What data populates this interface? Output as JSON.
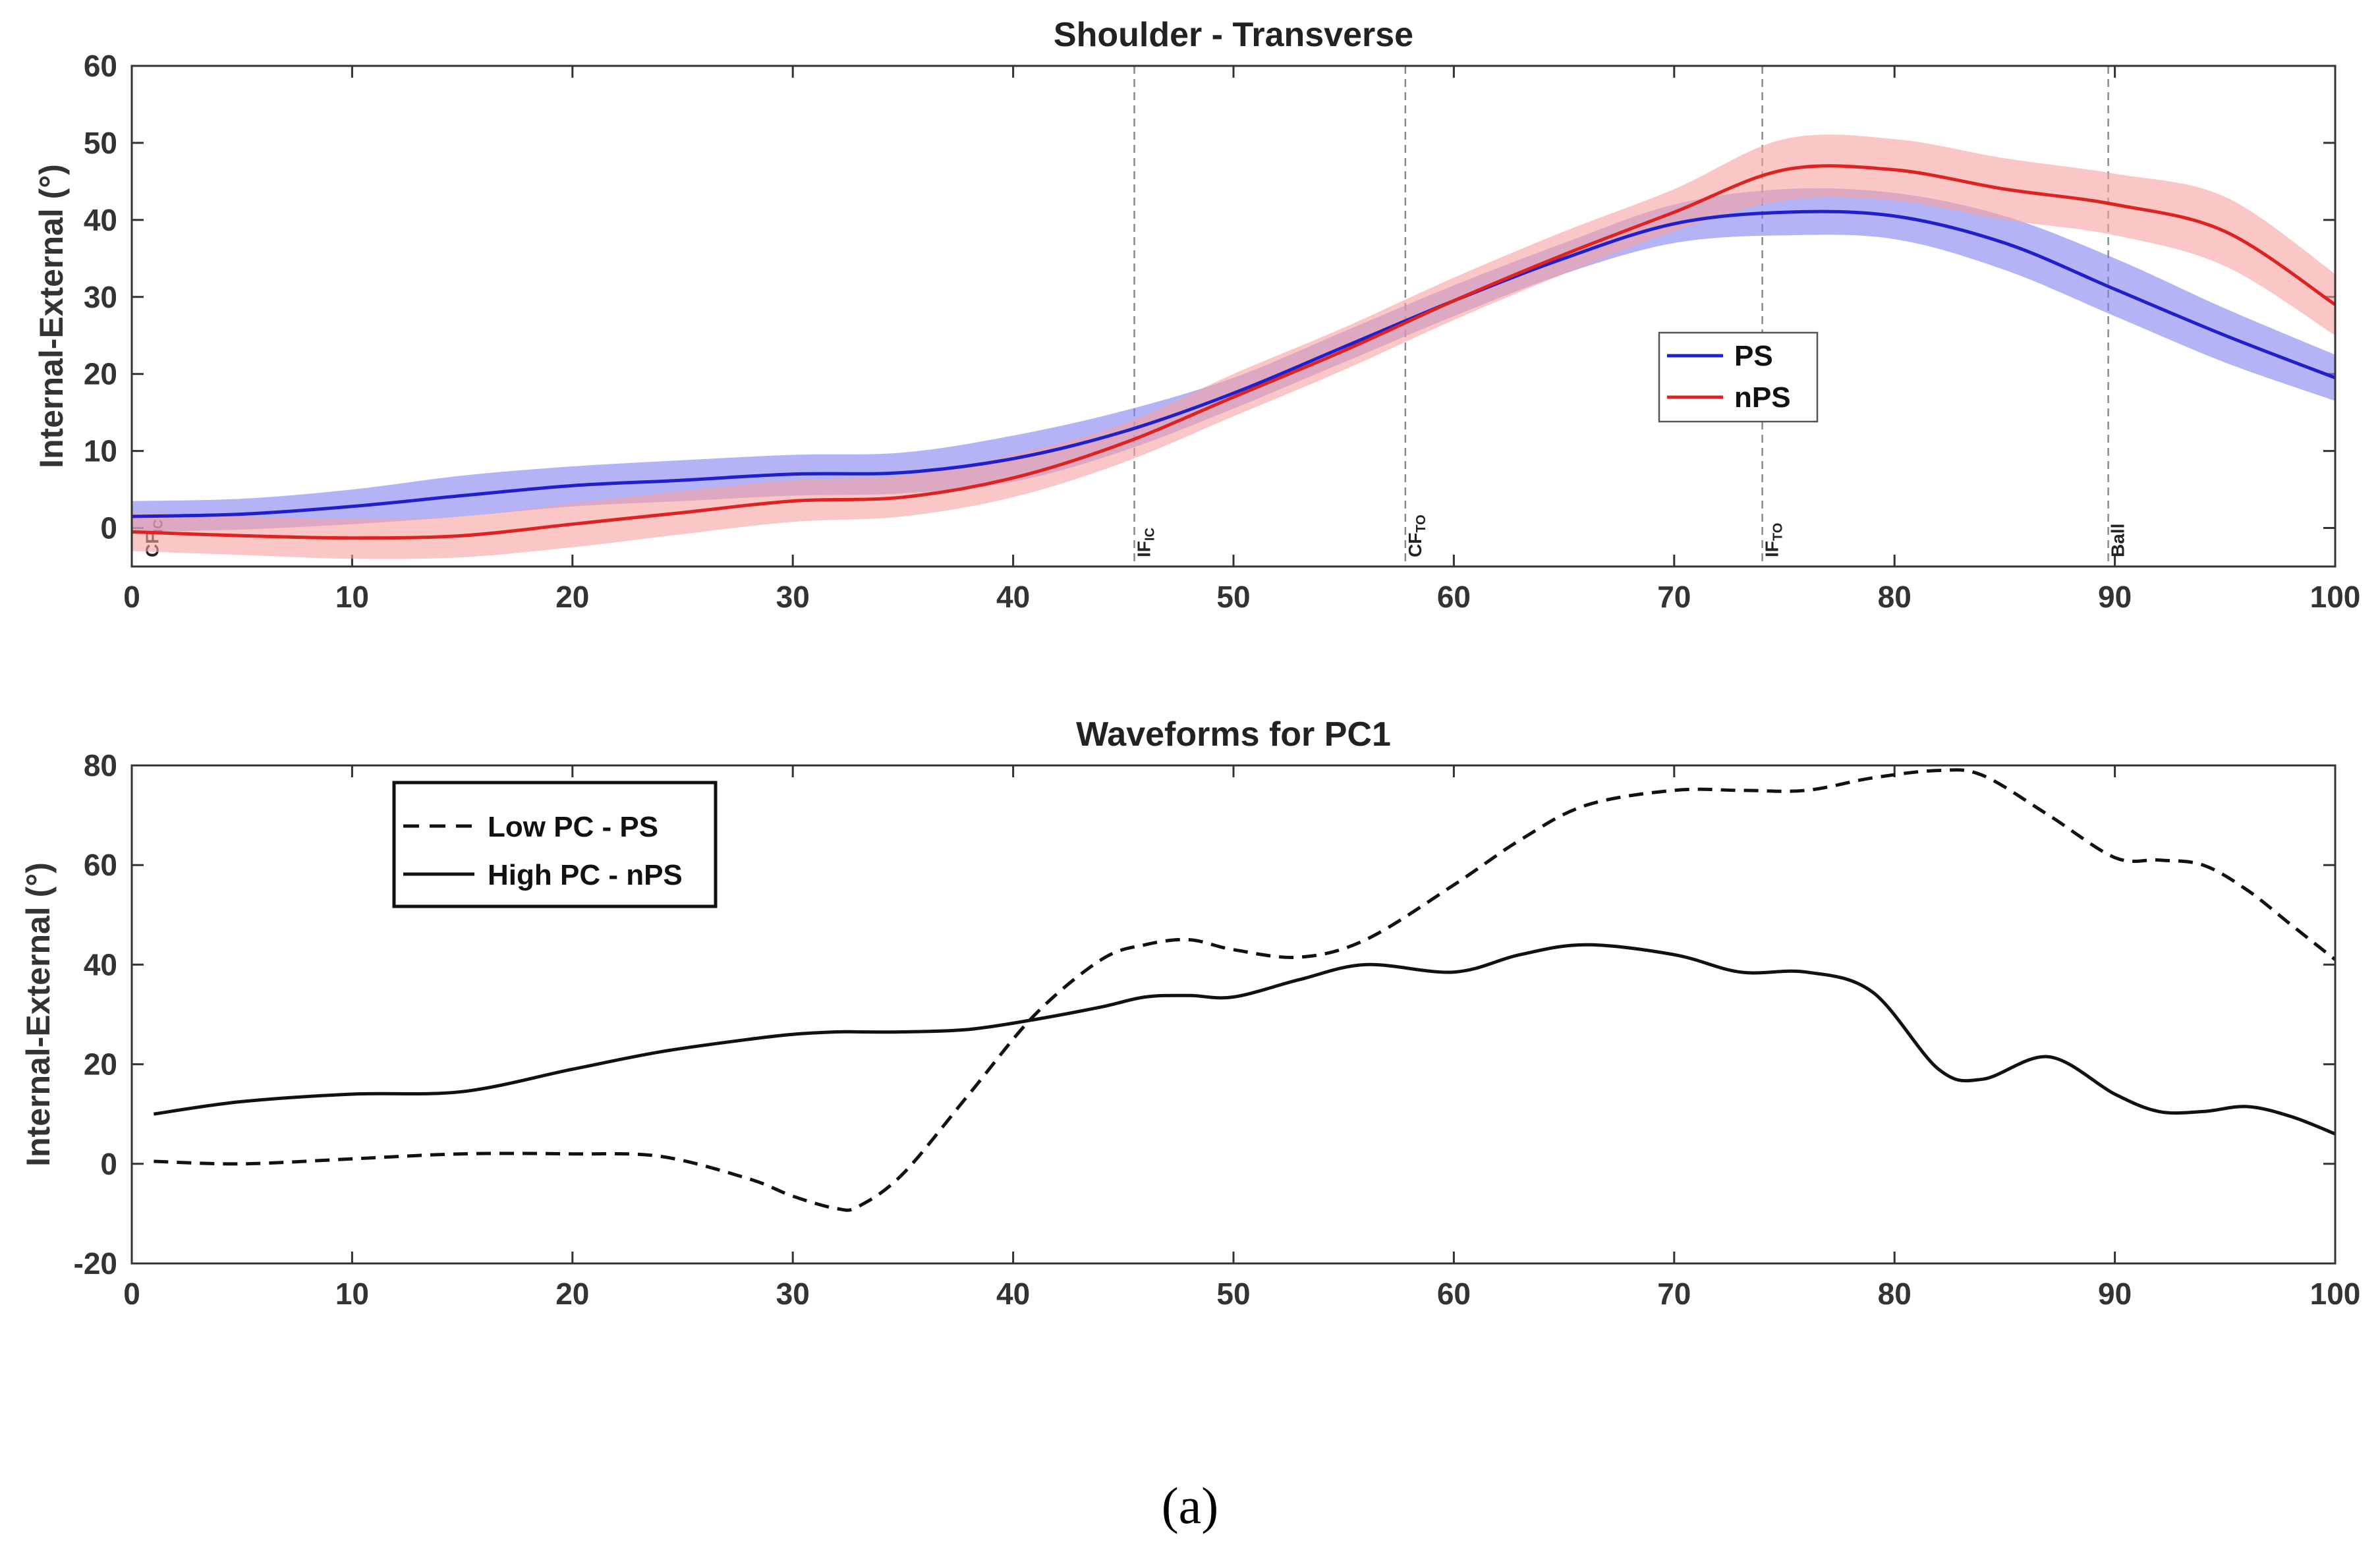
{
  "caption": "(a)",
  "chart_data": [
    {
      "type": "line",
      "title": "Shoulder - Transverse",
      "xlabel": "",
      "ylabel": "Internal-External (°)",
      "xlim": [
        0,
        100
      ],
      "ylim": [
        -5,
        60
      ],
      "xticks": [
        0,
        10,
        20,
        30,
        40,
        50,
        60,
        70,
        80,
        90,
        100
      ],
      "yticks": [
        0,
        10,
        20,
        30,
        40,
        50,
        60
      ],
      "legend": {
        "position": "center-right",
        "entries": [
          "PS",
          "nPS"
        ]
      },
      "events": [
        {
          "x": 0.5,
          "main": "CF",
          "sub": "IC"
        },
        {
          "x": 45.5,
          "main": "IF",
          "sub": "IC"
        },
        {
          "x": 57.8,
          "main": "CF",
          "sub": "TO"
        },
        {
          "x": 74,
          "main": "IF",
          "sub": "TO"
        },
        {
          "x": 89.7,
          "main": "Ball",
          "sub": ""
        }
      ],
      "x": [
        0,
        5,
        10,
        15,
        20,
        25,
        30,
        35,
        40,
        45,
        50,
        55,
        60,
        65,
        70,
        75,
        80,
        85,
        90,
        95,
        100
      ],
      "series": [
        {
          "name": "PS",
          "color": "#1f1fcc",
          "band_color": "#8080ee",
          "values": [
            1.5,
            1.8,
            2.8,
            4.2,
            5.5,
            6.2,
            7.0,
            7.2,
            9.0,
            12.5,
            17.5,
            23.5,
            29.5,
            35.0,
            39.5,
            41.0,
            40.5,
            37.0,
            31.0,
            25.0,
            19.5
          ],
          "band_low": [
            -0.5,
            -0.2,
            0.5,
            1.5,
            2.8,
            3.5,
            4.2,
            4.5,
            6.0,
            10.0,
            15.5,
            21.5,
            27.5,
            33.0,
            37.0,
            38.0,
            37.5,
            33.5,
            27.5,
            21.5,
            16.5
          ],
          "band_high": [
            3.5,
            3.8,
            5.0,
            6.8,
            8.0,
            8.8,
            9.5,
            9.8,
            12.0,
            15.2,
            19.5,
            25.5,
            31.5,
            37.0,
            42.0,
            44.0,
            43.5,
            40.5,
            35.0,
            28.5,
            22.5
          ]
        },
        {
          "name": "nPS",
          "color": "#dd2222",
          "band_color": "#f7a0a0",
          "values": [
            -0.5,
            -1.0,
            -1.3,
            -1.0,
            0.5,
            2.0,
            3.5,
            4.0,
            6.5,
            11.0,
            17.0,
            23.0,
            29.5,
            35.5,
            41.0,
            46.5,
            46.5,
            44.0,
            42.0,
            38.5,
            29.0
          ],
          "band_low": [
            -3.0,
            -3.5,
            -4.0,
            -3.8,
            -2.5,
            -0.8,
            0.8,
            1.5,
            4.0,
            8.5,
            14.5,
            20.5,
            27.0,
            33.0,
            38.5,
            42.5,
            42.5,
            40.0,
            38.0,
            34.0,
            25.0
          ],
          "band_high": [
            2.0,
            1.5,
            1.2,
            1.5,
            3.2,
            4.8,
            6.2,
            6.8,
            9.5,
            13.5,
            20.0,
            26.0,
            32.5,
            38.5,
            44.0,
            50.5,
            50.5,
            48.0,
            46.0,
            43.0,
            33.0
          ]
        }
      ]
    },
    {
      "type": "line",
      "title": "Waveforms for PC1",
      "xlabel": "",
      "ylabel": "Internal-External (°)",
      "xlim": [
        0,
        100
      ],
      "ylim": [
        -20,
        80
      ],
      "xticks": [
        0,
        10,
        20,
        30,
        40,
        50,
        60,
        70,
        80,
        90,
        100
      ],
      "yticks": [
        -20,
        0,
        20,
        40,
        60,
        80
      ],
      "legend": {
        "position": "top-left",
        "entries": [
          "Low PC - PS",
          "High PC - nPS"
        ]
      },
      "x": [
        1,
        5,
        10,
        15,
        20,
        24,
        28,
        30,
        32,
        33,
        35,
        38,
        41,
        44,
        46,
        48,
        50,
        53,
        56,
        60,
        63,
        66,
        70,
        73,
        76,
        79,
        82,
        84,
        87,
        90,
        92,
        94,
        96,
        98,
        100
      ],
      "series": [
        {
          "name": "Low PC - PS",
          "style": "dashed",
          "color": "#111111",
          "values": [
            0.5,
            0,
            1,
            2,
            2,
            1.5,
            -3,
            -6.5,
            -9,
            -8.5,
            -2,
            14,
            30,
            41,
            44,
            45,
            43,
            41.5,
            45,
            56,
            65,
            72,
            75,
            75,
            75,
            77.5,
            79,
            78,
            70,
            61.5,
            61,
            60,
            55,
            48,
            41
          ]
        },
        {
          "name": "High PC - nPS",
          "style": "solid",
          "color": "#111111",
          "values": [
            10,
            12.5,
            14,
            14.5,
            19,
            22.5,
            25,
            26,
            26.5,
            26.5,
            26.5,
            27,
            29,
            31.5,
            33.5,
            33.8,
            33.5,
            37,
            40,
            38.5,
            42,
            44,
            42,
            38.5,
            38.5,
            34.5,
            19,
            17,
            21.5,
            14,
            10.5,
            10.5,
            11.5,
            9.5,
            6
          ]
        }
      ]
    }
  ]
}
